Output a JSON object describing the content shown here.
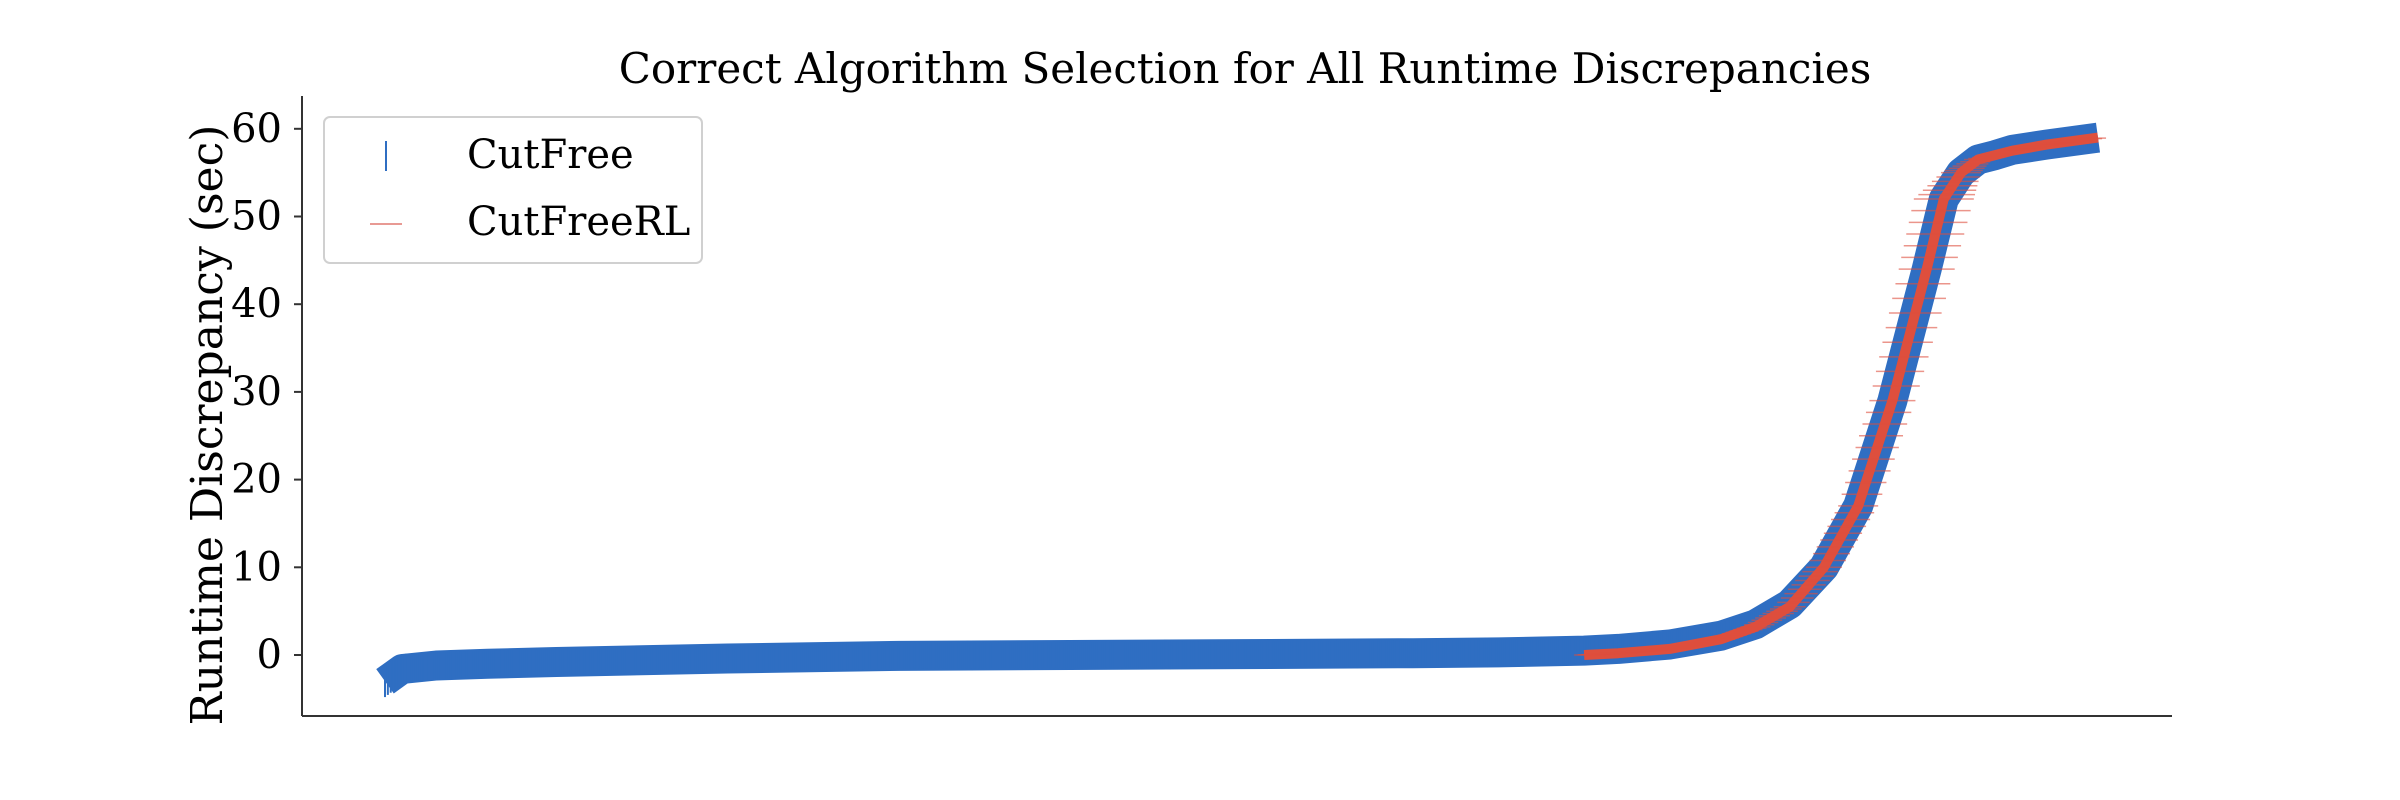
{
  "chart_data": {
    "type": "line",
    "title": "Correct Algorithm Selection for All Runtime Discrepancies",
    "xlabel": "",
    "ylabel": "Runtime Discrepancy (sec)",
    "x_range": [
      0,
      1
    ],
    "ylim": [
      -7,
      63
    ],
    "yticks": [
      0,
      10,
      20,
      30,
      40,
      50,
      60
    ],
    "ytick_labels": [
      "0",
      "10",
      "20",
      "30",
      "40",
      "50",
      "60"
    ],
    "grid": false,
    "legend_position": "top-left",
    "series": [
      {
        "name": "CutFree",
        "color": "#2f6ec2",
        "marker": "vertical line",
        "x": [
          0.0,
          0.01,
          0.03,
          0.06,
          0.1,
          0.2,
          0.3,
          0.4,
          0.5,
          0.6,
          0.65,
          0.7,
          0.72,
          0.75,
          0.78,
          0.8,
          0.82,
          0.84,
          0.86,
          0.88,
          0.9,
          0.91,
          0.92,
          0.93,
          0.94,
          0.95,
          0.97,
          1.0
        ],
        "y": [
          -3.0,
          -1.6,
          -1.2,
          -1.0,
          -0.8,
          -0.4,
          -0.1,
          0.0,
          0.1,
          0.2,
          0.3,
          0.5,
          0.7,
          1.2,
          2.2,
          3.5,
          5.8,
          10.0,
          17.0,
          29.0,
          44.0,
          52.0,
          55.0,
          56.5,
          57.0,
          57.6,
          58.2,
          59.0
        ],
        "spread": [
          1.8,
          1.7,
          1.6,
          1.5,
          1.5,
          1.5,
          1.5,
          1.5,
          1.5,
          1.5,
          1.5,
          1.5,
          1.5,
          1.5,
          1.5,
          1.5,
          1.5,
          1.5,
          1.2,
          1.2,
          1.2,
          1.2,
          1.2,
          1.2,
          1.2,
          1.2,
          1.2,
          1.2
        ]
      },
      {
        "name": "CutFreeRL",
        "color": "#de4f3d",
        "marker": "horizontal line",
        "x": [
          0.7,
          0.72,
          0.75,
          0.78,
          0.8,
          0.82,
          0.84,
          0.86,
          0.88,
          0.9,
          0.91,
          0.92,
          0.93,
          0.95,
          0.97,
          1.0
        ],
        "y": [
          0.0,
          0.2,
          0.7,
          1.8,
          3.2,
          5.5,
          10.0,
          17.0,
          29.0,
          44.0,
          52.0,
          55.0,
          56.5,
          57.5,
          58.2,
          59.0
        ],
        "spread": [
          0.2,
          0.4,
          0.5,
          0.6,
          0.7,
          0.8,
          1.0,
          1.2,
          1.5,
          2.0,
          2.2,
          1.2,
          0.6,
          0.4,
          0.4,
          0.4
        ]
      }
    ]
  }
}
